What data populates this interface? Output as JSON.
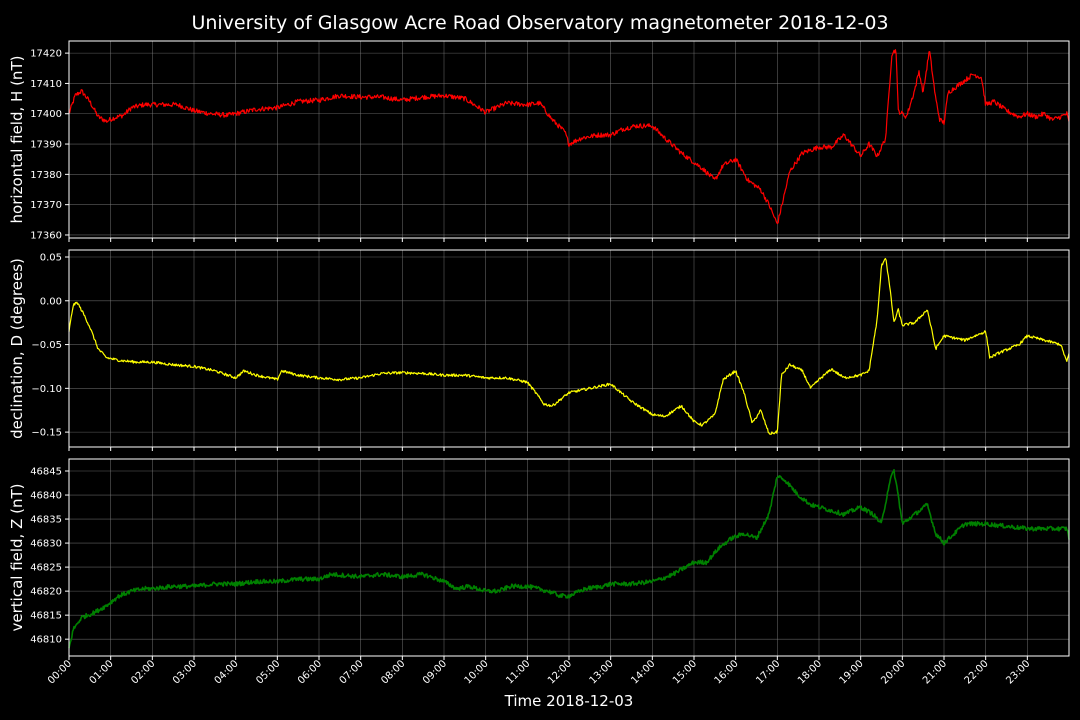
{
  "chart_data": {
    "type": "line",
    "title": "University of Glasgow Acre Road Observatory magnetometer 2018-12-03",
    "xlabel": "Time 2018-12-03",
    "x_ticks": [
      "00:00",
      "01:00",
      "02:00",
      "03:00",
      "04:00",
      "05:00",
      "06:00",
      "07:00",
      "08:00",
      "09:00",
      "10:00",
      "11:00",
      "12:00",
      "13:00",
      "14:00",
      "15:00",
      "16:00",
      "17:00",
      "18:00",
      "19:00",
      "20:00",
      "21:00",
      "22:00",
      "23:00"
    ],
    "xlim_hours": [
      0,
      24
    ],
    "grid": true,
    "panels": [
      {
        "id": "H",
        "ylabel": "horizontal field, H (nT)",
        "color": "#ff0000",
        "ylim": [
          17359,
          17424
        ],
        "y_ticks": [
          17360,
          17370,
          17380,
          17390,
          17400,
          17410,
          17420
        ],
        "noise": 0.8,
        "series": {
          "hours": [
            0,
            0.15,
            0.3,
            0.5,
            0.7,
            0.9,
            1.05,
            1.3,
            1.5,
            1.8,
            2.2,
            2.6,
            3.0,
            3.4,
            3.8,
            4.0,
            4.5,
            5.0,
            5.5,
            6.0,
            6.5,
            7.0,
            7.5,
            8.0,
            8.5,
            9.0,
            9.5,
            10.0,
            10.5,
            11.0,
            11.3,
            11.6,
            11.9,
            12.0,
            12.3,
            12.7,
            13.0,
            13.3,
            13.6,
            14.0,
            14.3,
            14.7,
            15.0,
            15.2,
            15.5,
            15.7,
            16.0,
            16.3,
            16.6,
            16.8,
            17.0,
            17.3,
            17.6,
            18.0,
            18.3,
            18.6,
            19.0,
            19.2,
            19.4,
            19.6,
            19.75,
            19.85,
            19.9,
            20.1,
            20.3,
            20.4,
            20.5,
            20.65,
            20.8,
            20.9,
            21.0,
            21.1,
            21.4,
            21.7,
            21.9,
            22.0,
            22.2,
            22.5,
            22.8,
            23.0,
            23.2,
            23.4,
            23.6,
            23.8,
            23.95,
            24.0
          ],
          "values": [
            17400,
            17406,
            17407.5,
            17404,
            17399,
            17397.5,
            17398.5,
            17399.5,
            17402,
            17403,
            17403,
            17403,
            17401,
            17400,
            17399.5,
            17400,
            17401.5,
            17402,
            17404,
            17404.5,
            17406,
            17405.5,
            17405.5,
            17404.5,
            17405.5,
            17406,
            17405,
            17400.5,
            17403.5,
            17403,
            17403.5,
            17398,
            17394,
            17390,
            17392,
            17393,
            17393,
            17395,
            17396,
            17396,
            17392,
            17387,
            17384,
            17382,
            17378,
            17383,
            17385,
            17378,
            17375,
            17370,
            17363.5,
            17381,
            17387,
            17389,
            17389,
            17393,
            17386,
            17390,
            17386,
            17392,
            17420,
            17421,
            17401,
            17399,
            17408,
            17414,
            17407,
            17421,
            17405,
            17398,
            17397,
            17407,
            17410,
            17413,
            17412,
            17403,
            17404,
            17401,
            17399,
            17400,
            17399,
            17400,
            17398,
            17399,
            17400,
            17397
          ]
        }
      },
      {
        "id": "D",
        "ylabel": "declination, D (degrees)",
        "color": "#ffff00",
        "ylim": [
          -0.167,
          0.058
        ],
        "y_ticks": [
          -0.15,
          -0.1,
          -0.05,
          0.0,
          0.05
        ],
        "y_tick_labels": [
          "−0.15",
          "−0.10",
          "−0.05",
          "0.00",
          "0.05"
        ],
        "noise": 0.0015,
        "series": {
          "hours": [
            0,
            0.1,
            0.2,
            0.35,
            0.5,
            0.7,
            0.9,
            1.2,
            1.6,
            2.0,
            2.5,
            3.0,
            3.5,
            4.0,
            4.2,
            4.5,
            5.0,
            5.1,
            5.5,
            6.0,
            6.5,
            7.0,
            7.5,
            8.0,
            8.5,
            9.0,
            9.5,
            10.0,
            10.5,
            11.0,
            11.2,
            11.4,
            11.6,
            12.0,
            12.5,
            13.0,
            13.5,
            14.0,
            14.3,
            14.7,
            15.0,
            15.2,
            15.5,
            15.7,
            16.0,
            16.2,
            16.4,
            16.6,
            16.8,
            17.0,
            17.1,
            17.3,
            17.6,
            17.8,
            18.0,
            18.3,
            18.6,
            19.0,
            19.2,
            19.4,
            19.5,
            19.6,
            19.7,
            19.8,
            19.9,
            20.0,
            20.3,
            20.6,
            20.8,
            21.0,
            21.5,
            22.0,
            22.1,
            22.3,
            22.8,
            23.0,
            23.4,
            23.8,
            23.95,
            24.0
          ],
          "values": [
            -0.035,
            -0.005,
            -0.002,
            -0.015,
            -0.03,
            -0.055,
            -0.065,
            -0.068,
            -0.07,
            -0.07,
            -0.073,
            -0.075,
            -0.08,
            -0.088,
            -0.08,
            -0.085,
            -0.09,
            -0.08,
            -0.085,
            -0.088,
            -0.09,
            -0.088,
            -0.083,
            -0.082,
            -0.083,
            -0.085,
            -0.085,
            -0.088,
            -0.088,
            -0.093,
            -0.105,
            -0.118,
            -0.12,
            -0.105,
            -0.1,
            -0.095,
            -0.115,
            -0.13,
            -0.132,
            -0.12,
            -0.138,
            -0.142,
            -0.13,
            -0.09,
            -0.08,
            -0.105,
            -0.14,
            -0.125,
            -0.152,
            -0.15,
            -0.085,
            -0.073,
            -0.08,
            -0.1,
            -0.09,
            -0.078,
            -0.088,
            -0.085,
            -0.08,
            -0.02,
            0.04,
            0.05,
            0.015,
            -0.025,
            -0.01,
            -0.028,
            -0.025,
            -0.01,
            -0.055,
            -0.04,
            -0.045,
            -0.035,
            -0.065,
            -0.06,
            -0.05,
            -0.04,
            -0.045,
            -0.05,
            -0.07,
            -0.06
          ]
        }
      },
      {
        "id": "Z",
        "ylabel": "vertical field, Z (nT)",
        "color": "#008000",
        "ylim": [
          46806.5,
          46847.5
        ],
        "y_ticks": [
          46810,
          46815,
          46820,
          46825,
          46830,
          46835,
          46840,
          46845
        ],
        "noise": 0.45,
        "series": {
          "hours": [
            0,
            0.1,
            0.3,
            0.6,
            0.9,
            1.2,
            1.5,
            1.8,
            2.0,
            2.5,
            3.0,
            3.5,
            4.0,
            4.5,
            5.0,
            5.5,
            6.0,
            6.3,
            7.0,
            7.5,
            8.0,
            8.5,
            9.0,
            9.3,
            9.6,
            10.0,
            10.3,
            10.6,
            11.0,
            11.5,
            11.8,
            12.0,
            12.4,
            12.8,
            13.0,
            13.5,
            14.0,
            14.2,
            14.5,
            14.8,
            15.0,
            15.3,
            15.6,
            15.9,
            16.2,
            16.5,
            16.8,
            17.0,
            17.2,
            17.5,
            17.8,
            18.2,
            18.6,
            19.0,
            19.3,
            19.5,
            19.7,
            19.8,
            19.9,
            20.0,
            20.3,
            20.6,
            20.8,
            21.0,
            21.5,
            22.0,
            22.5,
            23.0,
            23.5,
            23.95,
            24.0
          ],
          "values": [
            46808,
            46812,
            46814.5,
            46815.5,
            46817,
            46819,
            46820,
            46820.5,
            46820.5,
            46821,
            46821,
            46821.5,
            46821.5,
            46822,
            46822,
            46822.5,
            46822.5,
            46823.5,
            46823,
            46823.5,
            46823,
            46823.5,
            46822,
            46820.5,
            46821,
            46820,
            46820,
            46821,
            46821,
            46820,
            46819,
            46819,
            46820.5,
            46821,
            46821.5,
            46821.5,
            46822,
            46822.5,
            46823.5,
            46825,
            46826,
            46826,
            46829,
            46831,
            46832,
            46831,
            46836,
            46844,
            46843,
            46840,
            46838,
            46837,
            46836,
            46837.5,
            46836,
            46834,
            46843,
            46845,
            46840,
            46834,
            46836,
            46838,
            46832,
            46830,
            46834,
            46834,
            46833.5,
            46833,
            46833,
            46833,
            46831
          ]
        }
      }
    ]
  }
}
